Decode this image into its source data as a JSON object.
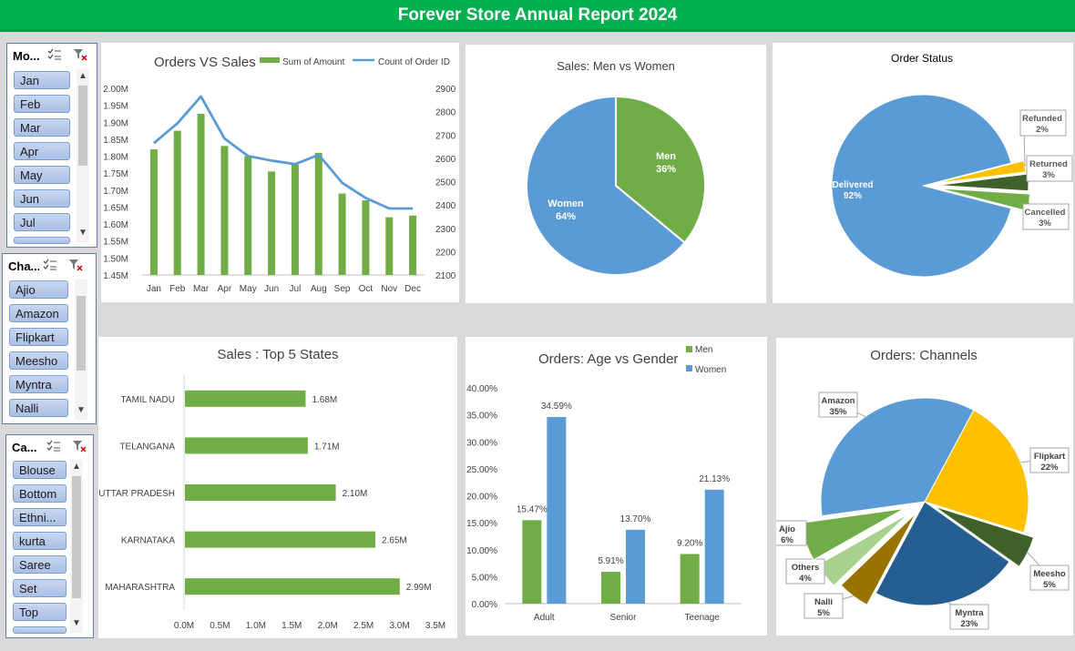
{
  "header": {
    "title": "Forever Store Annual Report 2024"
  },
  "slicers": {
    "month": {
      "title": "Mo...",
      "items": [
        "Jan",
        "Feb",
        "Mar",
        "Apr",
        "May",
        "Jun",
        "Jul"
      ]
    },
    "channel": {
      "title": "Cha...",
      "items": [
        "Ajio",
        "Amazon",
        "Flipkart",
        "Meesho",
        "Myntra",
        "Nalli"
      ]
    },
    "category": {
      "title": "Ca...",
      "items": [
        "Blouse",
        "Bottom",
        "Ethni...",
        "kurta",
        "Saree",
        "Set",
        "Top"
      ]
    }
  },
  "chart_data": [
    {
      "id": "orders_vs_sales",
      "type": "bar",
      "title": "Orders VS Sales",
      "categories": [
        "Jan",
        "Feb",
        "Mar",
        "Apr",
        "May",
        "Jun",
        "Jul",
        "Aug",
        "Sep",
        "Oct",
        "Nov",
        "Dec"
      ],
      "series": [
        {
          "name": "Sum of Amount",
          "kind": "bar",
          "axis": "left",
          "color": "#70ad47",
          "values": [
            1.82,
            1.875,
            1.925,
            1.83,
            1.8,
            1.755,
            1.775,
            1.81,
            1.69,
            1.67,
            1.62,
            1.625
          ]
        },
        {
          "name": "Count of Order ID",
          "kind": "line",
          "axis": "right",
          "color": "#5b9bd5",
          "values": [
            2665,
            2750,
            2865,
            2685,
            2610,
            2590,
            2575,
            2615,
            2495,
            2430,
            2385,
            2385
          ]
        }
      ],
      "left_axis": {
        "ylim": [
          1.45,
          2.0
        ],
        "ticks": [
          "1.45M",
          "1.50M",
          "1.55M",
          "1.60M",
          "1.65M",
          "1.70M",
          "1.75M",
          "1.80M",
          "1.85M",
          "1.90M",
          "1.95M",
          "2.00M"
        ]
      },
      "right_axis": {
        "ylim": [
          2100,
          2900
        ],
        "ticks": [
          "2100",
          "2200",
          "2300",
          "2400",
          "2500",
          "2600",
          "2700",
          "2800",
          "2900"
        ]
      },
      "legend": "top"
    },
    {
      "id": "sales_men_women",
      "type": "pie",
      "title": "Sales: Men vs Women",
      "slices": [
        {
          "label": "Men",
          "value": 36,
          "pct": "36%",
          "color": "#70ad47"
        },
        {
          "label": "Women",
          "value": 64,
          "pct": "64%",
          "color": "#5b9bd5"
        }
      ]
    },
    {
      "id": "order_status",
      "type": "pie",
      "title": "Order Status",
      "slices": [
        {
          "label": "Delivered",
          "value": 92,
          "pct": "92%",
          "color": "#5b9bd5"
        },
        {
          "label": "Refunded",
          "value": 2,
          "pct": "2%",
          "color": "#ffc000"
        },
        {
          "label": "Returned",
          "value": 3,
          "pct": "3%",
          "color": "#3f6129"
        },
        {
          "label": "Cancelled",
          "value": 3,
          "pct": "3%",
          "color": "#70ad47"
        }
      ]
    },
    {
      "id": "top5_states",
      "type": "bar",
      "orientation": "horizontal",
      "title": "Sales : Top 5 States",
      "categories": [
        "TAMIL NADU",
        "TELANGANA",
        "UTTAR PRADESH",
        "KARNATAKA",
        "MAHARASHTRA"
      ],
      "values": [
        1.68,
        1.71,
        2.1,
        2.65,
        2.99
      ],
      "value_labels": [
        "1.68M",
        "1.71M",
        "2.10M",
        "2.65M",
        "2.99M"
      ],
      "color": "#70ad47",
      "xlim": [
        0,
        3.5
      ],
      "ticks": [
        "0.0M",
        "0.5M",
        "1.0M",
        "1.5M",
        "2.0M",
        "2.5M",
        "3.0M",
        "3.5M"
      ]
    },
    {
      "id": "age_vs_gender",
      "type": "bar",
      "title": "Orders: Age vs Gender",
      "categories": [
        "Adult",
        "Senior",
        "Teenage"
      ],
      "series": [
        {
          "name": "Men",
          "color": "#70ad47",
          "values": [
            15.47,
            5.91,
            9.2
          ],
          "labels": [
            "15.47%",
            "5.91%",
            "9.20%"
          ]
        },
        {
          "name": "Women",
          "color": "#5b9bd5",
          "values": [
            34.59,
            13.7,
            21.13
          ],
          "labels": [
            "34.59%",
            "13.70%",
            "21.13%"
          ]
        }
      ],
      "ylim": [
        0,
        40
      ],
      "ticks": [
        "0.00%",
        "5.00%",
        "10.00%",
        "15.00%",
        "20.00%",
        "25.00%",
        "30.00%",
        "35.00%",
        "40.00%"
      ],
      "legend": "top-right"
    },
    {
      "id": "orders_channels",
      "type": "pie",
      "title": "Orders: Channels",
      "slices": [
        {
          "label": "Flipkart",
          "value": 22,
          "pct": "22%",
          "color": "#ffc000"
        },
        {
          "label": "Meesho",
          "value": 5,
          "pct": "5%",
          "color": "#3f6129"
        },
        {
          "label": "Myntra",
          "value": 23,
          "pct": "23%",
          "color": "#255e91"
        },
        {
          "label": "Nalli",
          "value": 5,
          "pct": "5%",
          "color": "#997300"
        },
        {
          "label": "Others",
          "value": 4,
          "pct": "4%",
          "color": "#a9d18e"
        },
        {
          "label": "Ajio",
          "value": 6,
          "pct": "6%",
          "color": "#70ad47"
        },
        {
          "label": "Amazon",
          "value": 35,
          "pct": "35%",
          "color": "#5b9bd5"
        }
      ]
    }
  ]
}
